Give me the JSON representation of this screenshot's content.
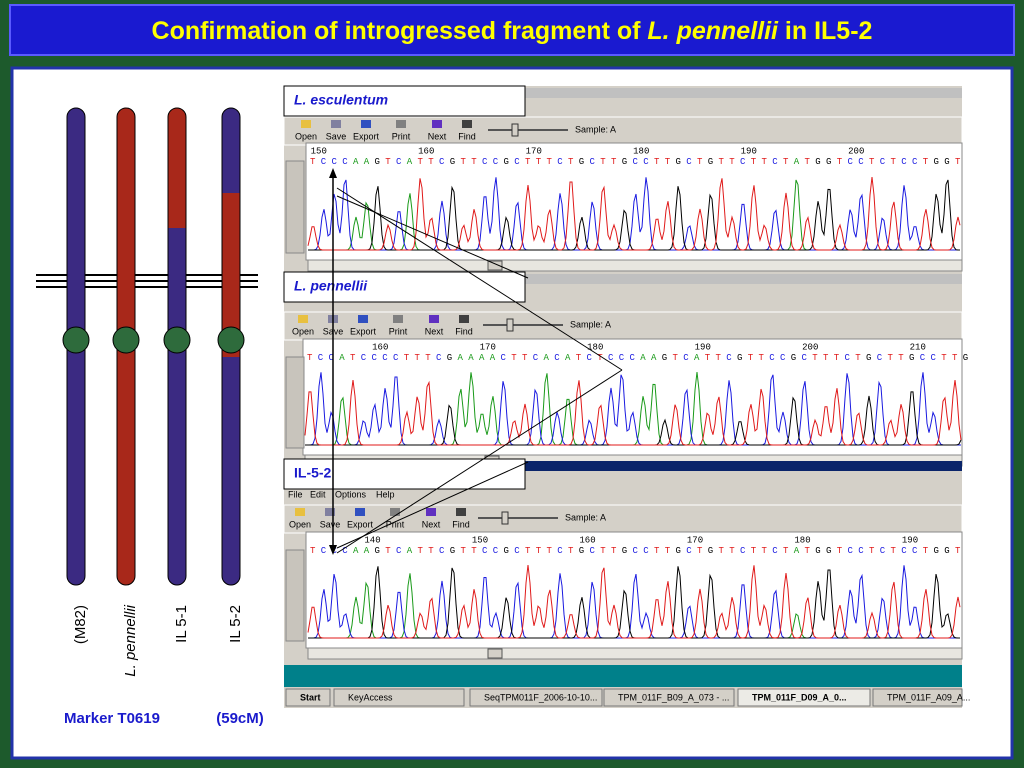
{
  "title": {
    "before": "Confirmation of introgressed fragment of ",
    "italic": "L. pennellii",
    "after": " in IL5-2"
  },
  "chromosome_labels": [
    "(M82)",
    "L. pennellii",
    "IL 5-1",
    "IL 5-2"
  ],
  "marker": "Marker T0619",
  "position": "(59cM)",
  "toolbar": [
    "Open",
    "Save",
    "Export",
    "Print",
    "Next",
    "Find"
  ],
  "sample": "Sample: A",
  "menu": [
    "File",
    "Edit",
    "Options",
    "Help"
  ],
  "panels": [
    {
      "label": "L. esculentum",
      "positions": [
        150,
        160,
        170,
        180,
        190,
        200
      ],
      "sequence": "TCCCAAGTCATTCGTTCCGCTTTCTGCTTGCCTTGCTGTTCTTCTATGGTCCTCTCCTGGT"
    },
    {
      "label": "L. pennellii",
      "positions": [
        160,
        170,
        180,
        190,
        200,
        210
      ],
      "sequence": "TCCATCCCCTTTCGAAAACTTCACATCTCCCAAGTCATTCGTTCCGCTTTCTGCTTGCCTTG"
    },
    {
      "label": "IL-5-2",
      "positions": [
        140,
        150,
        160,
        170,
        180,
        190
      ],
      "sequence": "TCCCAAGTCATTCGTTCCGCTTTCTGCTTGCCTTGCTGTTCTTCTATGGTCCTCTCCTGGT"
    }
  ],
  "taskbar": [
    "Start",
    "KeyAccess",
    "SeqTPM011F_2006-10-10...",
    "TPM_011F_B09_A_073 - ...",
    "TPM_011F_D09_A_0...",
    "TPM_011F_A09_A..."
  ]
}
